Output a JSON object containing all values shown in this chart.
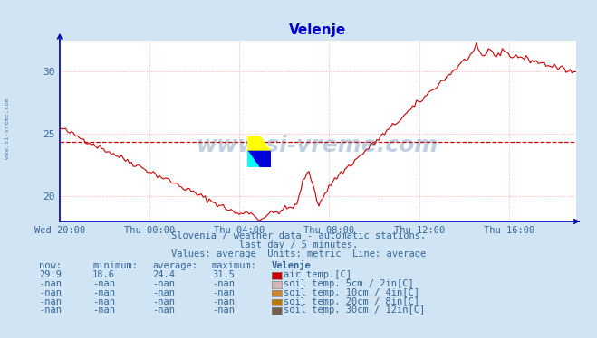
{
  "title": "Velenje",
  "title_color": "#0000cc",
  "bg_color": "#d0e4f4",
  "plot_bg_color": "#ffffff",
  "line_color": "#cc0000",
  "avg_line_color": "#cc0000",
  "avg_value": 24.4,
  "ylim": [
    18.0,
    32.5
  ],
  "yticks": [
    20,
    25,
    30
  ],
  "tick_color": "#336699",
  "grid_color": "#ffaaaa",
  "axis_color": "#0000bb",
  "watermark_text": "www.si-vreme.com",
  "watermark_color": "#336699",
  "watermark_alpha": 0.3,
  "subtitle1": "Slovenia / weather data - automatic stations.",
  "subtitle2": "last day / 5 minutes.",
  "subtitle3": "Values: average  Units: metric  Line: average",
  "subtitle_color": "#336699",
  "legend_header": "Velenje",
  "legend_items": [
    {
      "label": "air temp.[C]",
      "color": "#cc0000",
      "now": "29.9",
      "min": "18.6",
      "avg": "24.4",
      "max": "31.5"
    },
    {
      "label": "soil temp. 5cm / 2in[C]",
      "color": "#d4b8b8",
      "now": "-nan",
      "min": "-nan",
      "avg": "-nan",
      "max": "-nan"
    },
    {
      "label": "soil temp. 10cm / 4in[C]",
      "color": "#c8882a",
      "now": "-nan",
      "min": "-nan",
      "avg": "-nan",
      "max": "-nan"
    },
    {
      "label": "soil temp. 20cm / 8in[C]",
      "color": "#b87800",
      "now": "-nan",
      "min": "-nan",
      "avg": "-nan",
      "max": "-nan"
    },
    {
      "label": "soil temp. 30cm / 12in[C]",
      "color": "#706050",
      "now": "-nan",
      "min": "-nan",
      "avg": "-nan",
      "max": "-nan"
    }
  ],
  "xtick_labels": [
    "Wed 20:00",
    "Thu 00:00",
    "Thu 04:00",
    "Thu 08:00",
    "Thu 12:00",
    "Thu 16:00"
  ],
  "xtick_positions_norm": [
    0.0,
    0.174,
    0.348,
    0.522,
    0.696,
    0.87
  ]
}
